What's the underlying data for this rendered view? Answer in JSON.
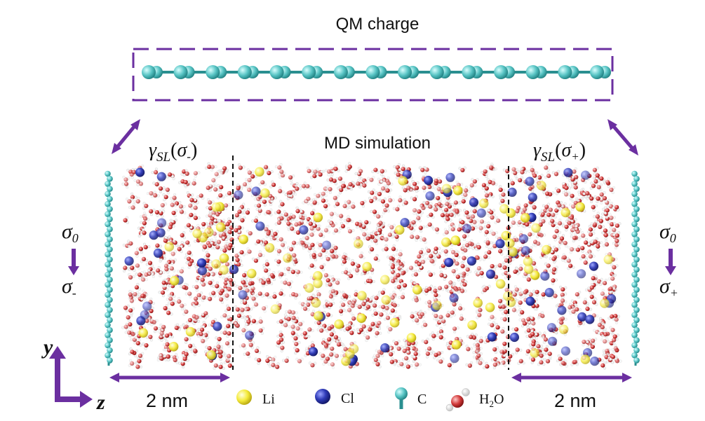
{
  "title": "QM charge",
  "md_label": "MD simulation",
  "gamma_left": {
    "base": "γ",
    "sub": "SL",
    "arg": "σ",
    "argsub": "-"
  },
  "gamma_right": {
    "base": "γ",
    "sub": "SL",
    "arg": "σ",
    "argsub": "+"
  },
  "sigma_left": {
    "top": "σ",
    "topsub": "0",
    "bottom": "σ",
    "bottomsub": "-"
  },
  "sigma_right": {
    "top": "σ",
    "topsub": "0",
    "bottom": "σ",
    "bottomsub": "+"
  },
  "axes": {
    "y": "y",
    "z": "z"
  },
  "scale_left": "2 nm",
  "scale_right": "2 nm",
  "legend": {
    "li": "Li",
    "cl": "Cl",
    "c": "C",
    "water": {
      "base": "H",
      "sub": "2",
      "tail": "O"
    }
  },
  "colors": {
    "accent": "#6b2fa0",
    "carbon": "#57c4c4",
    "carbon_dark": "#1f7f80",
    "li": "#f4ea3a",
    "cl": "#2f3bb8",
    "oxygen": "#d23a3a",
    "hydrogen": "#f1f1f1"
  }
}
